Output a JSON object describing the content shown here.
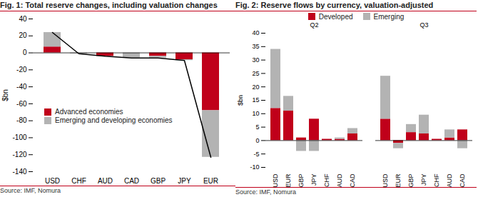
{
  "chart_data": [
    {
      "type": "bar",
      "title": "Fig. 1: Total reserve changes, including valuation changes",
      "ylabel": "$bn",
      "source": "Source: IMF, Nomura",
      "stacked": true,
      "grid": false,
      "legend": "bottom-left",
      "categories": [
        "USD",
        "CHF",
        "AUD",
        "CAD",
        "GBP",
        "JPY",
        "EUR"
      ],
      "ylim": [
        -140,
        40
      ],
      "yticks": [
        -140,
        -120,
        -100,
        -80,
        -60,
        -40,
        -20,
        0,
        20,
        40
      ],
      "series": [
        {
          "name": "Advanced economies",
          "color": "#c0001a",
          "values": [
            7,
            0,
            -4,
            0,
            -4,
            -8,
            -68
          ]
        },
        {
          "name": "Emerging and developing economies",
          "color": "#b3b3b3",
          "values": [
            17,
            -1,
            0,
            -6,
            -2,
            -1,
            -55
          ]
        },
        {
          "type": "line",
          "color": "#000000",
          "values": [
            24,
            -1,
            -4,
            -6,
            -6,
            -9,
            -123
          ]
        }
      ]
    },
    {
      "type": "bar",
      "title": "Fig. 2: Reserve flows by currency, valuation-adjusted",
      "ylabel": "$bn",
      "source": "Source: IMF, Nomura",
      "stacked": true,
      "grid": false,
      "legend": "top",
      "groups": [
        "Q2",
        "Q3"
      ],
      "categories": [
        "USD",
        "EUR",
        "GBP",
        "JPY",
        "CHF",
        "AUD",
        "CAD"
      ],
      "ylim": [
        -10,
        40
      ],
      "yticks": [
        -10,
        -5,
        0,
        5,
        10,
        15,
        20,
        25,
        30,
        35,
        40
      ],
      "series": [
        {
          "name": "Developed",
          "color": "#c0001a",
          "values": [
            [
              12,
              11,
              1,
              8,
              0.5,
              0.5,
              2.5
            ],
            [
              8,
              -1,
              3,
              2.5,
              0.5,
              1,
              4
            ]
          ]
        },
        {
          "name": "Emerging",
          "color": "#b3b3b3",
          "values": [
            [
              22,
              5.5,
              -4,
              -4,
              0,
              0.5,
              2
            ],
            [
              16,
              -2,
              3,
              7,
              0,
              3,
              -3
            ]
          ]
        }
      ]
    }
  ]
}
